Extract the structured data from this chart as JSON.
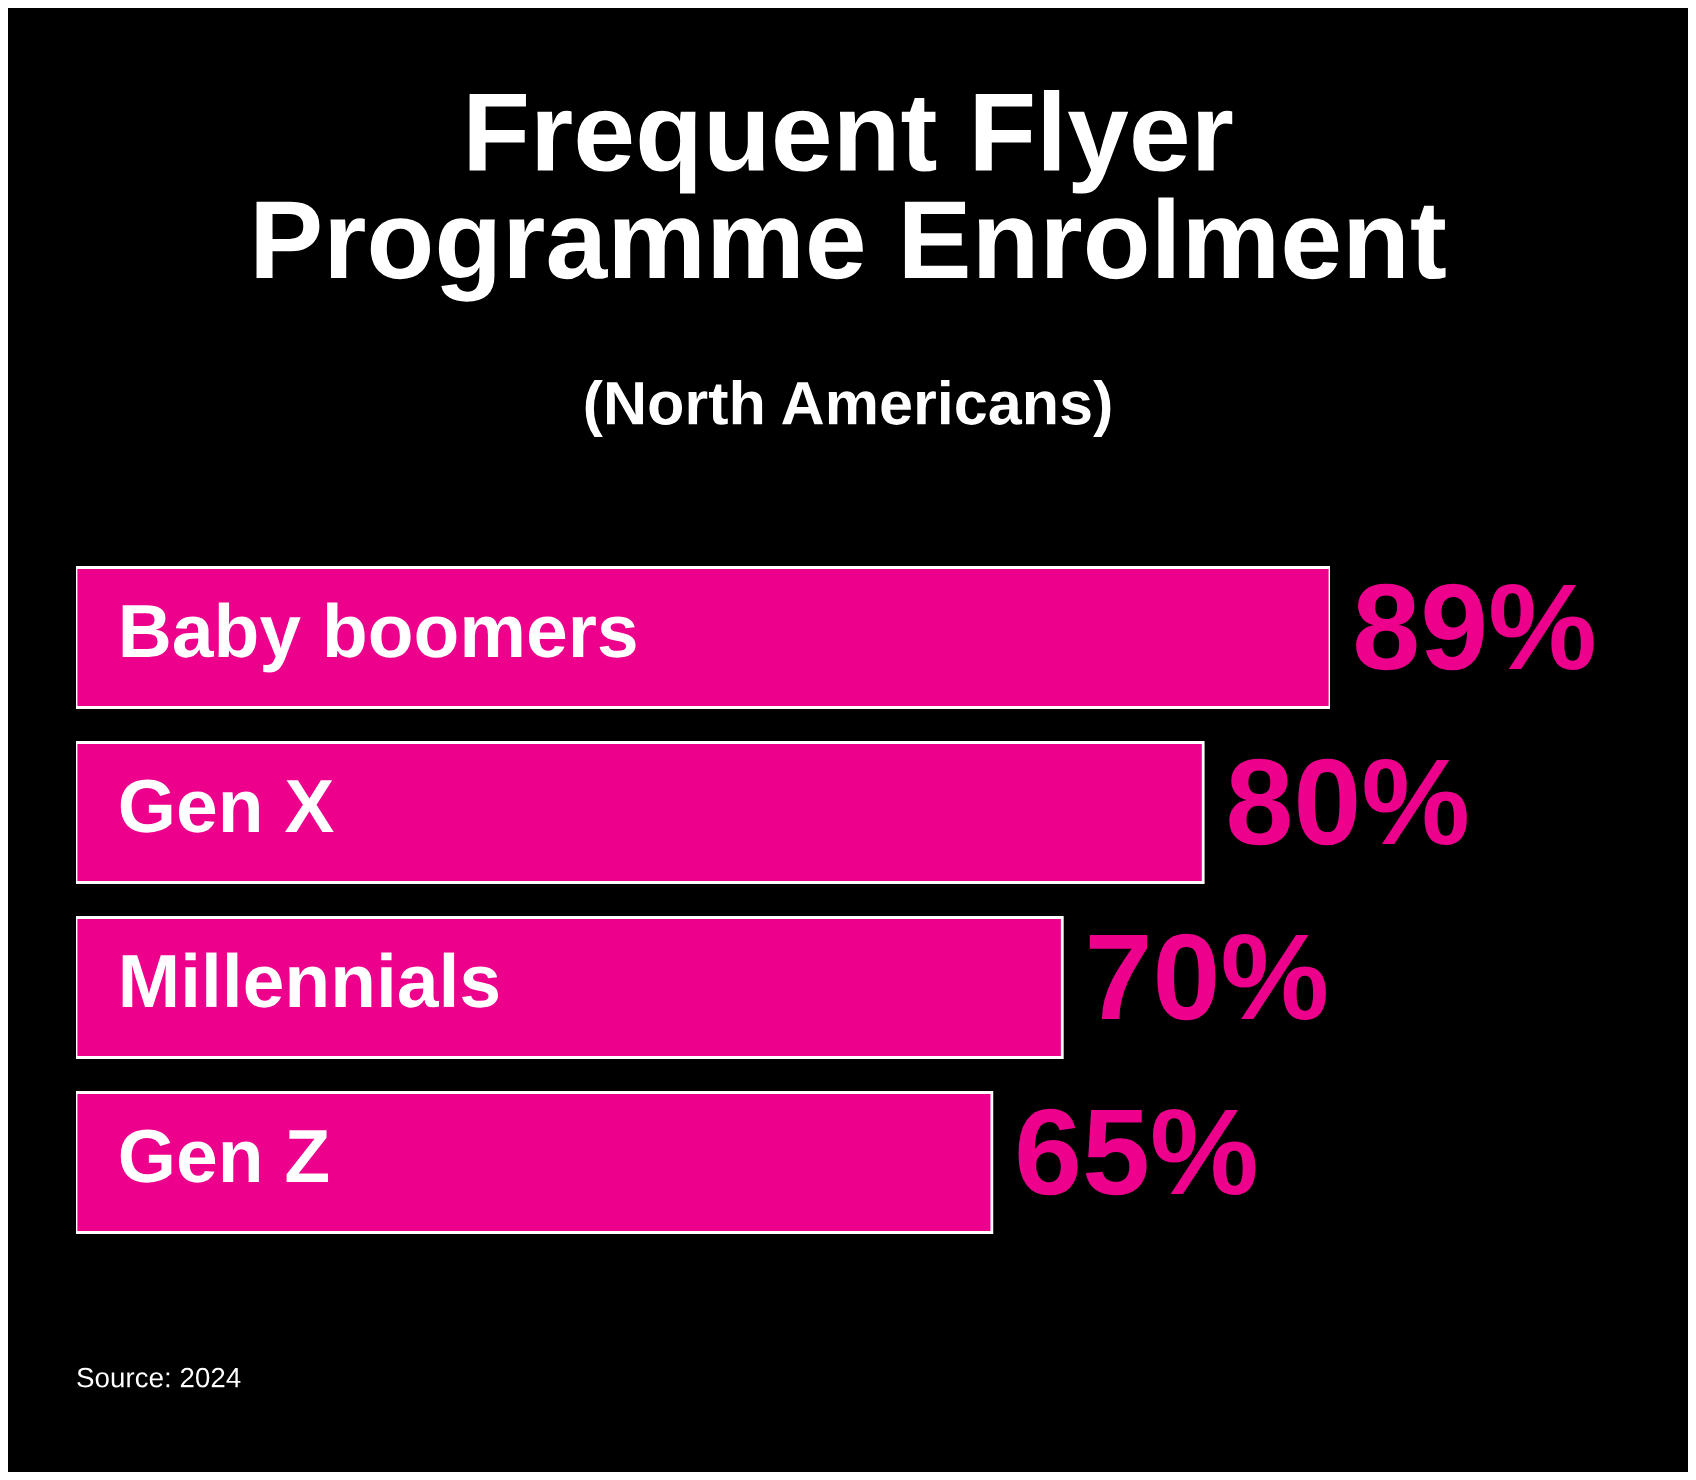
{
  "chart_data": {
    "type": "bar",
    "orientation": "horizontal",
    "title": "Frequent Flyer\nProgramme Enrolment",
    "subtitle": "(North Americans)",
    "categories": [
      "Baby boomers",
      "Gen X",
      "Millennials",
      "Gen Z"
    ],
    "values": [
      89,
      80,
      70,
      65
    ],
    "value_labels": [
      "89%",
      "80%",
      "70%",
      "65%"
    ],
    "color": "#ec008c",
    "annotations": [
      "Source: 2024"
    ]
  }
}
